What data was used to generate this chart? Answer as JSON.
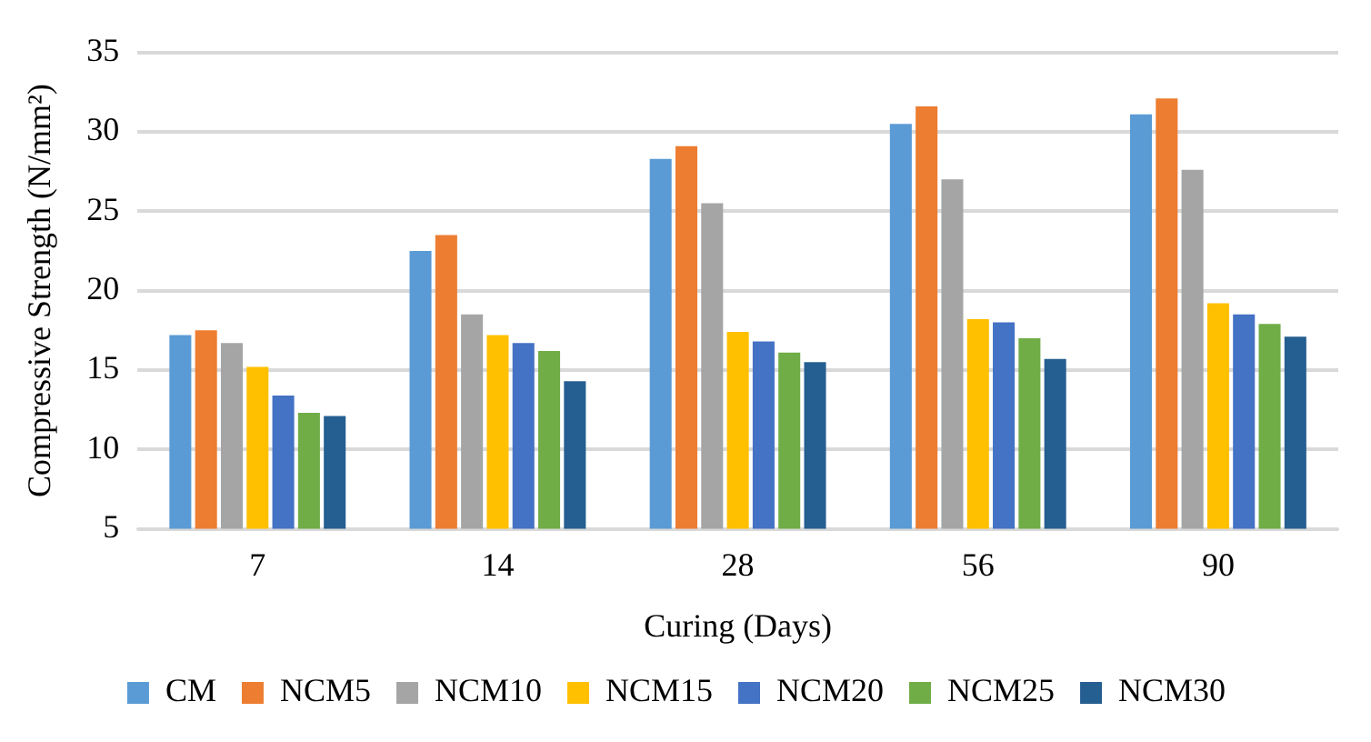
{
  "chart_data": {
    "type": "bar",
    "xlabel": "Curing (Days)",
    "ylabel": "Compressive Strength (N/mm²)",
    "categories": [
      "7",
      "14",
      "28",
      "56",
      "90"
    ],
    "series": [
      {
        "name": "CM",
        "color": "#5b9bd5",
        "values": [
          17.2,
          22.5,
          28.3,
          30.5,
          31.1
        ]
      },
      {
        "name": "NCM5",
        "color": "#ed7d31",
        "values": [
          17.5,
          23.5,
          29.1,
          31.6,
          32.1
        ]
      },
      {
        "name": "NCM10",
        "color": "#a5a5a5",
        "values": [
          16.7,
          18.5,
          25.5,
          27.0,
          27.6
        ]
      },
      {
        "name": "NCM15",
        "color": "#ffc000",
        "values": [
          15.2,
          17.2,
          17.4,
          18.2,
          19.2
        ]
      },
      {
        "name": "NCM20",
        "color": "#4472c4",
        "values": [
          13.4,
          16.7,
          16.8,
          18.0,
          18.5
        ]
      },
      {
        "name": "NCM25",
        "color": "#70ad47",
        "values": [
          12.3,
          16.2,
          16.1,
          17.0,
          17.9
        ]
      },
      {
        "name": "NCM30",
        "color": "#255e91",
        "values": [
          12.1,
          14.3,
          15.5,
          15.7,
          17.1
        ]
      }
    ],
    "ylim": [
      5,
      35
    ],
    "yticks": [
      5,
      10,
      15,
      20,
      25,
      30,
      35
    ],
    "grid": "y",
    "legend": "bottom"
  }
}
